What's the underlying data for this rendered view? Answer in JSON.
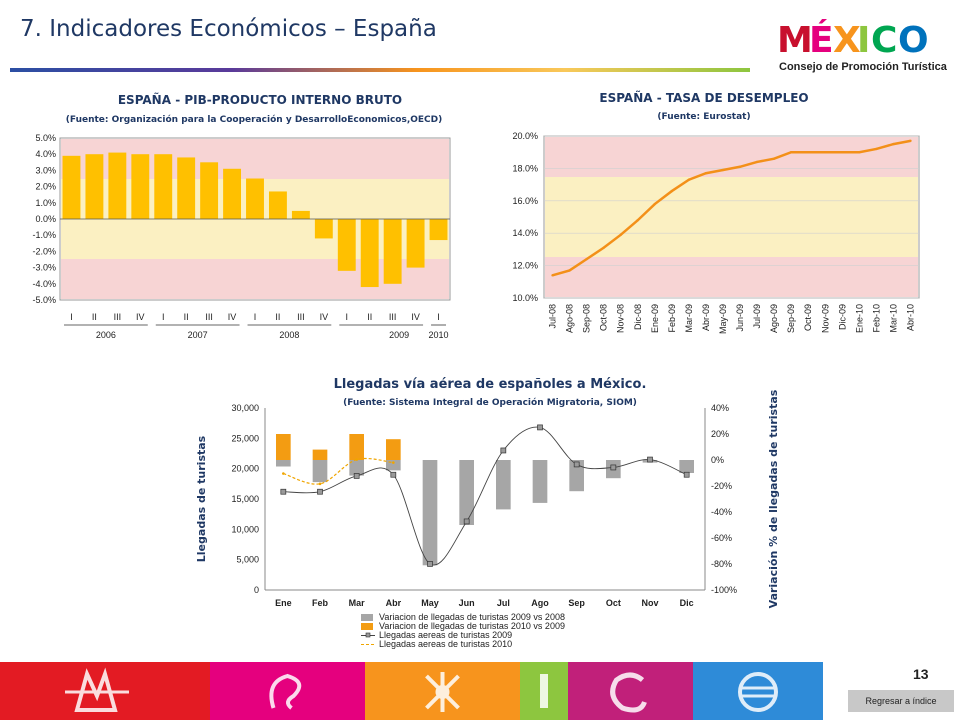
{
  "page": {
    "title": "7. Indicadores Económicos – España",
    "page_number": "13",
    "back_button": "Regresar a índice"
  },
  "logo": {
    "wordmark": "MÉXICO",
    "subtitle": "Consejo de Promoción Turística"
  },
  "colors": {
    "title": "#1f3864",
    "bar": "#ffc000",
    "line": "#f39019",
    "flag_red": "#c60b1e",
    "flag_yellow": "#ffc400",
    "series_gray": "#a6a6a6",
    "series_orange": "#f39c12",
    "band": [
      "#e31b23",
      "#e5007e",
      "#f7941d",
      "#8dc63f",
      "#c1207a",
      "#2e8bd8"
    ]
  },
  "chart_data": [
    {
      "type": "bar",
      "title": "ESPAÑA - PIB-PRODUCTO INTERNO BRUTO",
      "subtitle": "(Fuente: Organización para la Cooperación y DesarrolloEconomicos,OECD)",
      "categories": [
        "I",
        "II",
        "III",
        "IV",
        "I",
        "II",
        "III",
        "IV",
        "I",
        "II",
        "III",
        "IV",
        "I",
        "II",
        "III",
        "IV",
        "I"
      ],
      "years": [
        "2006",
        "2007",
        "2008",
        "2009",
        "2010"
      ],
      "values": [
        3.9,
        4.0,
        4.1,
        4.0,
        4.0,
        3.8,
        3.5,
        3.1,
        2.5,
        1.7,
        0.5,
        -1.2,
        -3.2,
        -4.2,
        -4.0,
        -3.0,
        -1.3
      ],
      "ylim": [
        -5.0,
        5.0
      ],
      "yticks": [
        "5.0%",
        "4.0%",
        "3.0%",
        "2.0%",
        "1.0%",
        "0.0%",
        "-1.0%",
        "-2.0%",
        "-3.0%",
        "-4.0%",
        "-5.0%"
      ],
      "background": "Spanish flag"
    },
    {
      "type": "line",
      "title": "ESPAÑA - TASA DE DESEMPLEO",
      "subtitle": "(Fuente: Eurostat)",
      "categories": [
        "Jul-08",
        "Ago-08",
        "Sep-08",
        "Oct-08",
        "Nov-08",
        "Dic-08",
        "Ene-09",
        "Feb-09",
        "Mar-09",
        "Abr-09",
        "May-09",
        "Jun-09",
        "Jul-09",
        "Ago-09",
        "Sep-09",
        "Oct-09",
        "Nov-09",
        "Dic-09",
        "Ene-10",
        "Feb-10",
        "Mar-10",
        "Abr-10"
      ],
      "values": [
        11.4,
        11.7,
        12.4,
        13.1,
        13.9,
        14.8,
        15.8,
        16.6,
        17.3,
        17.7,
        17.9,
        18.1,
        18.4,
        18.6,
        19.0,
        19.0,
        19.0,
        19.0,
        19.0,
        19.2,
        19.5,
        19.7
      ],
      "ylim": [
        10.0,
        20.0
      ],
      "yticks": [
        "20.0%",
        "18.0%",
        "16.0%",
        "14.0%",
        "12.0%",
        "10.0%"
      ],
      "background": "Spanish flag"
    },
    {
      "type": "bar",
      "title": "Llegadas vía aérea de españoles a México.",
      "subtitle": "(Fuente: Sistema Integral de Operación Migratoria, SIOM)",
      "categories": [
        "Ene",
        "Feb",
        "Mar",
        "Abr",
        "May",
        "Jun",
        "Jul",
        "Ago",
        "Sep",
        "Oct",
        "Nov",
        "Dic"
      ],
      "ylabel": "Llegadas de turistas",
      "y2label": "Variación % de llegadas de turistas",
      "ylim": [
        0,
        30000
      ],
      "yticks": [
        "30,000",
        "25,000",
        "20,000",
        "15,000",
        "10,000",
        "5,000",
        "0"
      ],
      "y2lim": [
        -100,
        40
      ],
      "y2ticks": [
        "40%",
        "20%",
        "0%",
        "-20%",
        "-40%",
        "-60%",
        "-80%",
        "-100%"
      ],
      "series": [
        {
          "name": "Variacion de llegadas de turistas  2009 vs 2008",
          "axis": "right",
          "kind": "bar",
          "values": [
            -5,
            -17,
            -12,
            -8,
            -81,
            -50,
            -38,
            -33,
            -24,
            -14,
            -2,
            -10
          ]
        },
        {
          "name": "Variacion de llegadas de turistas  2010 vs 2009",
          "axis": "right",
          "kind": "bar",
          "values": [
            20,
            8,
            20,
            16,
            null,
            null,
            null,
            null,
            null,
            null,
            null,
            null
          ]
        },
        {
          "name": "Llegadas aereas de turistas 2009",
          "axis": "left",
          "kind": "line",
          "values": [
            16200,
            16200,
            18800,
            19000,
            4300,
            11300,
            23000,
            26800,
            20700,
            20200,
            21500,
            19000
          ]
        },
        {
          "name": "Llegadas aereas de turistas 2010",
          "axis": "left",
          "kind": "line",
          "values": [
            19200,
            17500,
            21500,
            21000,
            null,
            null,
            null,
            null,
            null,
            null,
            null,
            null
          ]
        }
      ]
    }
  ]
}
